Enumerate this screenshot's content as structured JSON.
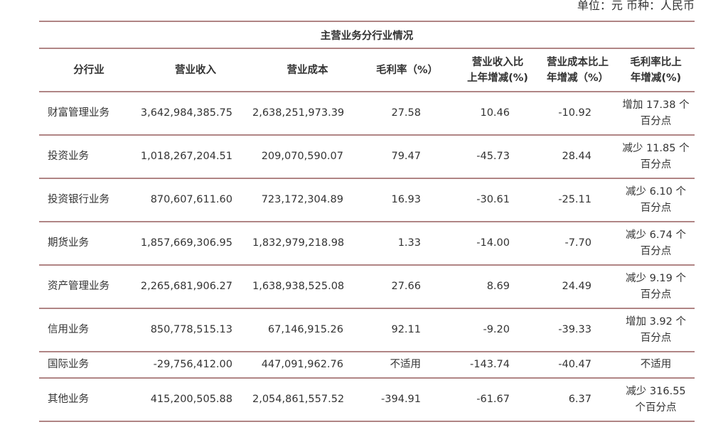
{
  "unit_note": "单位：元  币种：人民币",
  "table": {
    "title": "主营业务分行业情况",
    "headers": [
      "分行业",
      "营业收入",
      "营业成本",
      "毛利率（%）",
      "营业收入比上年增减(%)",
      "营业成本比上年增减（%）",
      "毛利率比上年增减(%)"
    ],
    "header_lines": [
      [
        "分行业"
      ],
      [
        "营业收入"
      ],
      [
        "营业成本"
      ],
      [
        "毛利率（%）"
      ],
      [
        "营业收入比",
        "上年增减(%)"
      ],
      [
        "营业成本比上",
        "年增减（%）"
      ],
      [
        "毛利率比上",
        "年增减(%)"
      ]
    ],
    "rows": [
      [
        "财富管理业务",
        "3,642,984,385.75",
        "2,638,251,973.39",
        "27.58",
        "10.46",
        "-10.92",
        "增加 17.38 个百分点"
      ],
      [
        "投资业务",
        "1,018,267,204.51",
        "209,070,590.07",
        "79.47",
        "-45.73",
        "28.44",
        "减少 11.85 个百分点"
      ],
      [
        "投资银行业务",
        "870,607,611.60",
        "723,172,304.89",
        "16.93",
        "-30.61",
        "-25.11",
        "减少 6.10 个百分点"
      ],
      [
        "期货业务",
        "1,857,669,306.95",
        "1,832,979,218.98",
        "1.33",
        "-14.00",
        "-7.70",
        "减少 6.74 个百分点"
      ],
      [
        "资产管理业务",
        "2,265,681,906.27",
        "1,638,938,525.08",
        "27.66",
        "8.69",
        "24.49",
        "减少 9.19 个百分点"
      ],
      [
        "信用业务",
        "850,778,515.13",
        "67,146,915.26",
        "92.11",
        "-9.20",
        "-39.33",
        "增加 3.92 个百分点"
      ],
      [
        "国际业务",
        "-29,756,412.00",
        "447,091,962.76",
        "不适用",
        "-143.74",
        "-40.47",
        "不适用"
      ],
      [
        "其他业务",
        "415,200,505.88",
        "2,054,861,557.52",
        "-394.91",
        "-61.67",
        "6.37",
        "减少 316.55 个百分点"
      ]
    ]
  },
  "colors": {
    "rule": "#b08585",
    "text": "#333333"
  }
}
